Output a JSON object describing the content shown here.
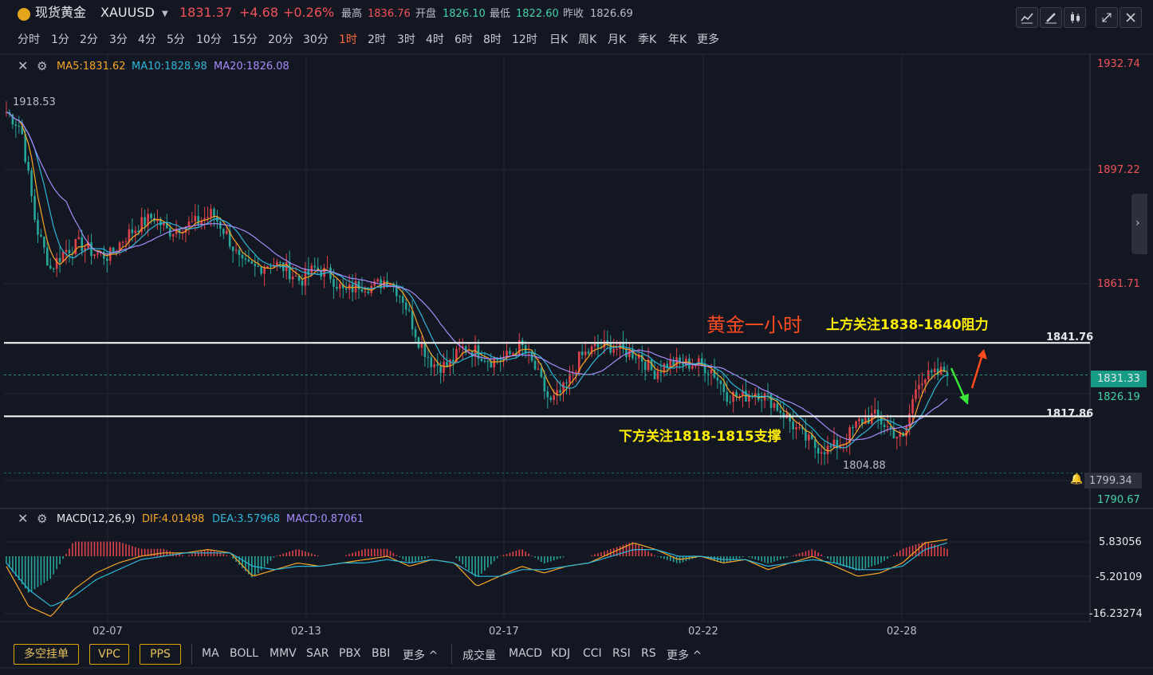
{
  "header": {
    "symbol_name": "现货黄金",
    "symbol_code": "XAUUSD",
    "price": "1831.37",
    "change": "+4.68",
    "change_pct": "+0.26%",
    "high_label": "最高",
    "high": "1836.76",
    "open_label": "开盘",
    "open": "1826.10",
    "low_label": "最低",
    "low": "1822.60",
    "prev_close_label": "昨收",
    "prev_close": "1826.69"
  },
  "timeframes": [
    "分时",
    "1分",
    "2分",
    "3分",
    "4分",
    "5分",
    "10分",
    "15分",
    "20分",
    "30分",
    "1时",
    "2时",
    "3时",
    "4时",
    "6时",
    "8时",
    "12时",
    "日K",
    "周K",
    "月K",
    "季K",
    "年K",
    "更多"
  ],
  "active_timeframe": "1时",
  "ma_legend": {
    "ma5": "MA5:1831.62",
    "ma10": "MA10:1828.98",
    "ma20": "MA20:1826.08"
  },
  "macd_legend": {
    "name": "MACD(12,26,9)",
    "dif": "DIF:4.01498",
    "dea": "DEA:3.57968",
    "macd": "MACD:0.87061"
  },
  "price_axis": [
    "1932.74",
    "1897.22",
    "1861.71",
    "1790.67"
  ],
  "price_tags": {
    "current": "1831.33",
    "second": "1826.19",
    "alert": "1799.34",
    "line_high": "1841.76",
    "line_low": "1817.86",
    "swing_high": "1918.53",
    "swing_low": "1804.88"
  },
  "macd_axis": [
    "5.83056",
    "-5.20109",
    "-16.23274"
  ],
  "date_axis": [
    "02-07",
    "02-13",
    "02-17",
    "02-22",
    "02-28"
  ],
  "annotations": {
    "title": "黄金一小时",
    "resistance": "上方关注1838-1840阻力",
    "support": "下方关注1818-1815支撑"
  },
  "bottom_buttons": [
    "多空挂单",
    "VPC",
    "PPS"
  ],
  "bottom_indicators_left": [
    "MA",
    "BOLL",
    "MMV",
    "SAR",
    "PBX",
    "BBI",
    "更多 ^"
  ],
  "bottom_indicators_right": [
    "成交量",
    "MACD",
    "KDJ",
    "CCI",
    "RSI",
    "RS",
    "更多 ^"
  ],
  "colors": {
    "bg": "#131722",
    "up": "#e0424b",
    "down": "#26a69a",
    "ma5": "#f6a623",
    "ma10": "#2bb6d9",
    "ma20": "#a78bfa",
    "accent": "#ff6a3a"
  },
  "chart_data": {
    "type": "candlestick",
    "xlabel": "",
    "ylabel": "",
    "ylim": [
      1790.67,
      1932.74
    ],
    "dates": [
      "02-07",
      "02-13",
      "02-17",
      "02-22",
      "02-28"
    ],
    "close_path": [
      1917,
      1912,
      1880,
      1866,
      1872,
      1874,
      1871,
      1870,
      1876,
      1880,
      1883,
      1878,
      1880,
      1881,
      1884,
      1877,
      1867,
      1866,
      1868,
      1866,
      1862,
      1866,
      1864,
      1858,
      1861,
      1860,
      1863,
      1856,
      1843,
      1835,
      1834,
      1840,
      1839,
      1836,
      1837,
      1841,
      1833,
      1822,
      1827,
      1837,
      1840,
      1841,
      1839,
      1838,
      1832,
      1835,
      1835,
      1835,
      1833,
      1825,
      1824,
      1826,
      1823,
      1818,
      1812,
      1808,
      1807,
      1810,
      1816,
      1818,
      1814,
      1810,
      1830,
      1831,
      1833
    ],
    "hlines": [
      1841.76,
      1817.86
    ],
    "macd_dif_path": [
      -3,
      -15,
      -18,
      -10,
      -5,
      -2,
      0,
      1,
      1,
      2,
      1,
      -6,
      -4,
      -2,
      -3,
      -2,
      -1,
      0,
      -3,
      -1,
      -2,
      -9,
      -6,
      -3,
      -5,
      -3,
      -2,
      1,
      4,
      2,
      -1,
      0,
      -2,
      -1,
      -4,
      -2,
      0,
      -3,
      -6,
      -5,
      -2,
      4,
      5
    ],
    "macd_dea_path": [
      -2,
      -10,
      -15,
      -12,
      -7,
      -4,
      -1,
      0,
      1,
      1,
      1,
      -3,
      -4,
      -3,
      -3,
      -2,
      -2,
      -1,
      -2,
      -1,
      -2,
      -6,
      -6,
      -4,
      -4,
      -3,
      -2,
      0,
      2,
      2,
      0,
      0,
      -1,
      -1,
      -3,
      -2,
      -1,
      -2,
      -4,
      -4,
      -3,
      2,
      4
    ]
  }
}
